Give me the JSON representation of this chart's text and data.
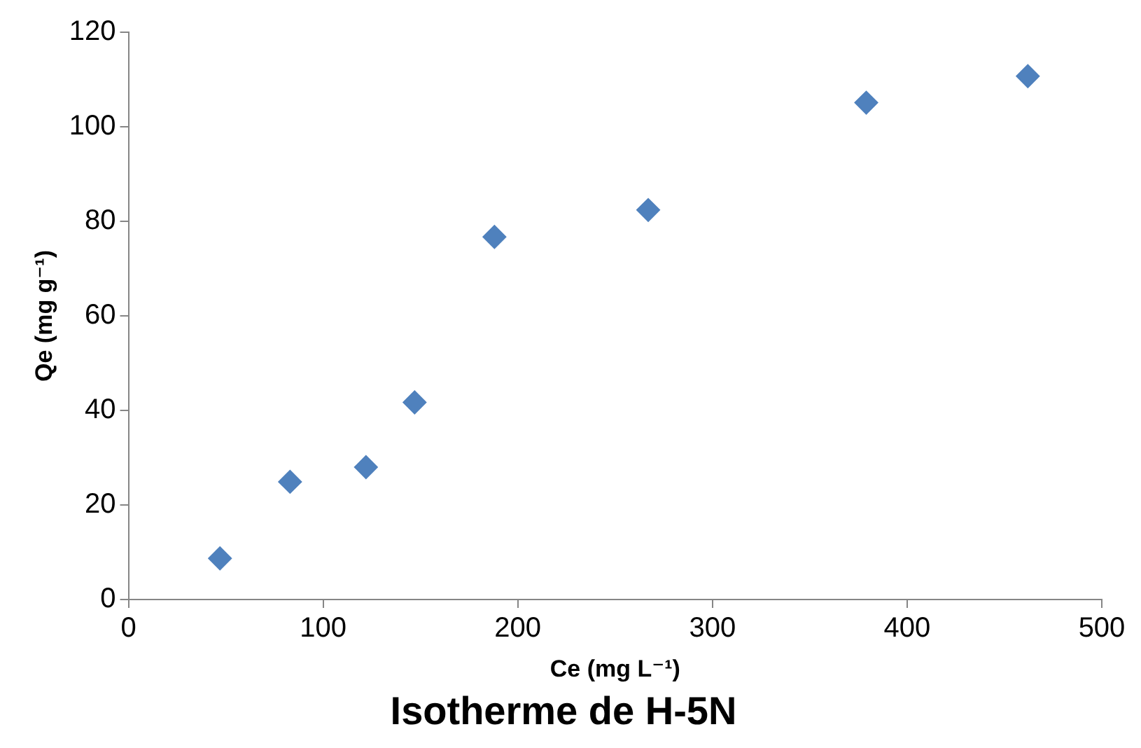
{
  "chart_data": {
    "type": "scatter",
    "title": "Isotherme de H-5N",
    "xlabel": "Ce (mg L⁻¹)",
    "ylabel": "Qe (mg g⁻¹)",
    "x": [
      47,
      83,
      122,
      147,
      188,
      267,
      379,
      462
    ],
    "series": [
      {
        "color": "#4f81bd",
        "values": [
          8.7,
          24.9,
          28.0,
          41.7,
          76.7,
          82.4,
          105.1,
          110.7
        ]
      }
    ],
    "xlim": [
      0,
      500
    ],
    "xticks": [
      0,
      100,
      200,
      300,
      400,
      500
    ],
    "ylim": [
      0,
      120
    ],
    "yticks": [
      0,
      20,
      40,
      60,
      80,
      100,
      120
    ],
    "grid": false,
    "legend": false,
    "marker": "diamond"
  }
}
